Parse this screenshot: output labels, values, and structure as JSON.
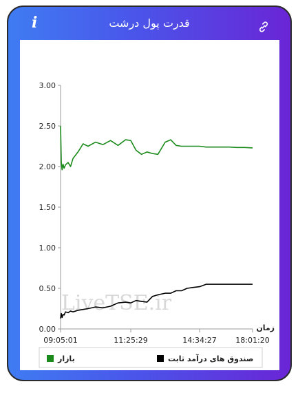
{
  "header": {
    "title": "قدرت پول درشت",
    "info_icon": "info-icon",
    "link_icon": "link-icon",
    "gradient_start": "#3f7cf2",
    "gradient_end": "#6a25d6"
  },
  "watermark": "LiveTSE.ir",
  "chart_data": {
    "type": "line",
    "title": "",
    "xlabel": "زمان",
    "ylabel": "",
    "ylim": [
      0,
      3
    ],
    "yticks": [
      "0.00",
      "0.50",
      "1.00",
      "1.50",
      "2.00",
      "2.50",
      "3.00"
    ],
    "xticks": [
      "09:05:01",
      "11:25:29",
      "14:34:27",
      "18:01:20"
    ],
    "grid": false,
    "legend_position": "bottom",
    "series": [
      {
        "name": "بازار",
        "color": "#1a8a1a",
        "x": [
          "09:05:01",
          "09:06:30",
          "09:08:00",
          "09:10:00",
          "09:12:00",
          "09:15:00",
          "09:20:00",
          "09:25:00",
          "09:30:00",
          "09:40:00",
          "09:50:00",
          "10:00:00",
          "10:15:00",
          "10:30:00",
          "10:45:00",
          "11:00:00",
          "11:15:00",
          "11:25:29",
          "11:40:00",
          "11:55:00",
          "12:10:00",
          "12:25:00",
          "12:40:00",
          "13:00:00",
          "13:15:00",
          "13:30:00",
          "13:45:00",
          "14:00:00",
          "14:15:00",
          "14:34:27",
          "15:00:00",
          "15:30:00",
          "16:00:00",
          "16:30:00",
          "17:00:00",
          "17:30:00",
          "18:01:20"
        ],
        "values": [
          2.5,
          2.05,
          1.96,
          2.03,
          1.98,
          2.02,
          2.05,
          2.0,
          2.1,
          2.18,
          2.28,
          2.25,
          2.3,
          2.27,
          2.32,
          2.26,
          2.33,
          2.32,
          2.2,
          2.15,
          2.18,
          2.16,
          2.15,
          2.3,
          2.33,
          2.26,
          2.25,
          2.25,
          2.25,
          2.25,
          2.24,
          2.24,
          2.24,
          2.24,
          2.235,
          2.235,
          2.23
        ]
      },
      {
        "name": "صندوق های درآمد ثابت",
        "color": "#000000",
        "x": [
          "09:05:01",
          "09:06:30",
          "09:08:00",
          "09:10:00",
          "09:12:00",
          "09:15:00",
          "09:20:00",
          "09:25:00",
          "09:30:00",
          "09:40:00",
          "09:50:00",
          "10:00:00",
          "10:15:00",
          "10:30:00",
          "10:45:00",
          "11:00:00",
          "11:15:00",
          "11:25:29",
          "11:40:00",
          "11:55:00",
          "12:10:00",
          "12:25:00",
          "12:40:00",
          "13:00:00",
          "13:15:00",
          "13:30:00",
          "13:45:00",
          "14:00:00",
          "14:15:00",
          "14:34:27",
          "15:00:00",
          "15:30:00",
          "16:00:00",
          "16:30:00",
          "17:00:00",
          "17:30:00",
          "18:01:20"
        ],
        "values": [
          0.13,
          0.19,
          0.14,
          0.18,
          0.17,
          0.21,
          0.2,
          0.22,
          0.21,
          0.23,
          0.24,
          0.25,
          0.27,
          0.26,
          0.28,
          0.32,
          0.33,
          0.32,
          0.35,
          0.34,
          0.33,
          0.4,
          0.42,
          0.44,
          0.44,
          0.47,
          0.47,
          0.5,
          0.51,
          0.52,
          0.55,
          0.55,
          0.55,
          0.55,
          0.55,
          0.55,
          0.55
        ]
      }
    ]
  }
}
